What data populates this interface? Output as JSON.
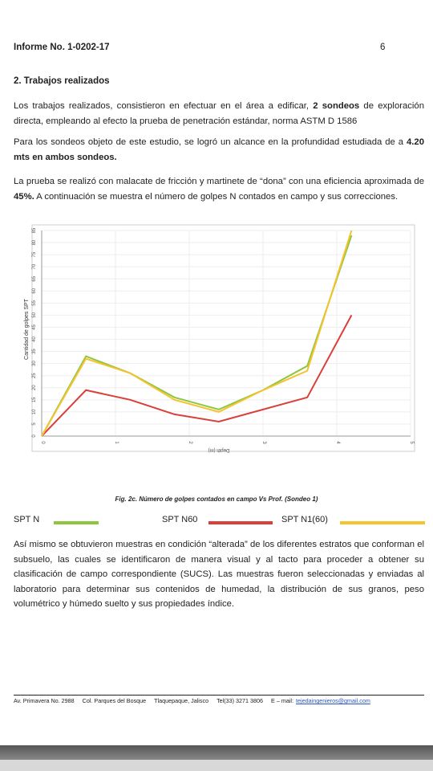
{
  "header": {
    "title": "Informe No. 1-0202-17",
    "page": "6"
  },
  "section": {
    "heading": "2. Trabajos realizados",
    "paragraphs": [
      [
        {
          "text": "Los trabajos realizados, consistieron en efectuar en el área a edificar, "
        },
        {
          "text": "2 sondeos",
          "bold": true
        },
        {
          "text": " de exploración directa, empleando al efecto la prueba de penetración estándar, norma ASTM D 1586"
        }
      ],
      [
        {
          "text": "Para los sondeos objeto de este estudio, se logró un alcance en la profundidad estudiada de a "
        },
        {
          "text": "4.20 mts en ambos sondeos.",
          "bold": true
        }
      ],
      [
        {
          "text": "La prueba se realizó con malacate de fricción y martinete de “dona” con una eficiencia aproximada de "
        },
        {
          "text": "45%.",
          "bold": true
        },
        {
          "text": " A continuación se  muestra el número de golpes N contados en campo y sus correcciones."
        }
      ]
    ]
  },
  "chart_data": {
    "type": "line",
    "x_label": "Depth (m)",
    "y_label": "Cantidad de golpes SPT",
    "x": [
      0,
      0.6,
      1.2,
      1.8,
      2.4,
      3.0,
      3.6,
      4.2
    ],
    "series": [
      {
        "name": "SPT N",
        "color": "#8dc63f",
        "values": [
          0,
          33,
          26,
          16,
          11,
          19,
          29,
          83
        ]
      },
      {
        "name": "SPT N60",
        "color": "#d9403a",
        "values": [
          0,
          19,
          15,
          9,
          6,
          11,
          16,
          50
        ]
      },
      {
        "name": "SPT N1(60)",
        "color": "#f5c330",
        "values": [
          0,
          32,
          26,
          15,
          10,
          19,
          27,
          85
        ]
      }
    ],
    "xlim": [
      0,
      5
    ],
    "xticks": [
      0,
      1,
      2,
      3,
      4,
      5
    ],
    "ylim": [
      0,
      85
    ],
    "yticks": [
      0,
      5,
      10,
      15,
      20,
      25,
      30,
      35,
      40,
      45,
      50,
      55,
      60,
      65,
      70,
      75,
      80,
      85
    ],
    "grid": true
  },
  "caption": "Fig. 2c. Número de golpes contados en campo Vs Prof.  (Sondeo  1)",
  "closing_paragraph": "Así mismo se obtuvieron muestras en condición “alterada” de los diferentes estratos que conforman el subsuelo, las cuales se identificaron de manera visual y al tacto para proceder a obtener su clasificación de campo correspondiente (SUCS). Las muestras fueron seleccionadas y enviadas al laboratorio para determinar sus contenidos de humedad, la distribución de sus granos, peso volumétrico y húmedo suelto y sus propiedades índice.",
  "footer": {
    "address": "Av. Primavera No. 2988",
    "colony": "Col. Parques del Bosque",
    "city": "Tlaquepaque, Jalisco",
    "phone": "Tel(33) 3271 3806",
    "email_label": "E – mail:",
    "email": "tejedaingenieros@gmail.com"
  }
}
